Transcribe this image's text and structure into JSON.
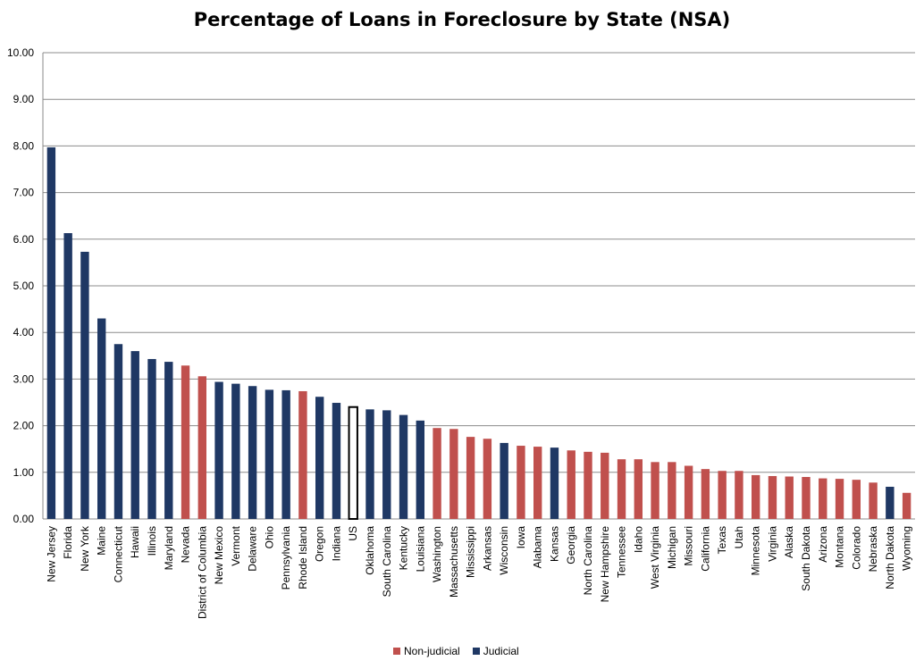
{
  "chart_data": {
    "type": "bar",
    "title": "Percentage of Loans in Foreclosure by State (NSA)",
    "xlabel": "",
    "ylabel": "",
    "ylim": [
      0,
      10
    ],
    "yticks": [
      "0.00",
      "1.00",
      "2.00",
      "3.00",
      "4.00",
      "5.00",
      "6.00",
      "7.00",
      "8.00",
      "9.00",
      "10.00"
    ],
    "grid": true,
    "legend_position": "bottom",
    "colors": {
      "Non-judicial": "#c0504d",
      "Judicial": "#1f3864",
      "US": "#ffffff",
      "US_outline": "#000000"
    },
    "legend": [
      "Non-judicial",
      "Judicial"
    ],
    "categories": [
      "New Jersey",
      "Florida",
      "New York",
      "Maine",
      "Connecticut",
      "Hawaii",
      "Illinois",
      "Maryland",
      "Nevada",
      "District of Columbia",
      "New Mexico",
      "Vermont",
      "Delaware",
      "Ohio",
      "Pennsylvania",
      "Rhode Island",
      "Oregon",
      "Indiana",
      "US",
      "Oklahoma",
      "South Carolina",
      "Kentucky",
      "Louisiana",
      "Washington",
      "Massachusetts",
      "Mississippi",
      "Arkansas",
      "Wisconsin",
      "Iowa",
      "Alabama",
      "Kansas",
      "Georgia",
      "North Carolina",
      "New Hampshire",
      "Tennessee",
      "Idaho",
      "West Virginia",
      "Michigan",
      "Missouri",
      "California",
      "Texas",
      "Utah",
      "Minnesota",
      "Virginia",
      "Alaska",
      "South Dakota",
      "Arizona",
      "Montana",
      "Colorado",
      "Nebraska",
      "North Dakota",
      "Wyoming"
    ],
    "values": [
      7.97,
      6.13,
      5.73,
      4.3,
      3.75,
      3.6,
      3.43,
      3.37,
      3.29,
      3.06,
      2.94,
      2.9,
      2.85,
      2.77,
      2.76,
      2.74,
      2.62,
      2.49,
      2.4,
      2.35,
      2.33,
      2.23,
      2.11,
      1.95,
      1.93,
      1.76,
      1.72,
      1.63,
      1.57,
      1.55,
      1.53,
      1.47,
      1.44,
      1.42,
      1.28,
      1.28,
      1.22,
      1.22,
      1.14,
      1.07,
      1.03,
      1.03,
      0.94,
      0.92,
      0.91,
      0.9,
      0.87,
      0.86,
      0.84,
      0.78,
      0.69,
      0.56
    ],
    "groups": [
      "Judicial",
      "Judicial",
      "Judicial",
      "Judicial",
      "Judicial",
      "Judicial",
      "Judicial",
      "Judicial",
      "Non-judicial",
      "Non-judicial",
      "Judicial",
      "Judicial",
      "Judicial",
      "Judicial",
      "Judicial",
      "Non-judicial",
      "Judicial",
      "Judicial",
      "US",
      "Judicial",
      "Judicial",
      "Judicial",
      "Judicial",
      "Non-judicial",
      "Non-judicial",
      "Non-judicial",
      "Non-judicial",
      "Judicial",
      "Non-judicial",
      "Non-judicial",
      "Judicial",
      "Non-judicial",
      "Non-judicial",
      "Non-judicial",
      "Non-judicial",
      "Non-judicial",
      "Non-judicial",
      "Non-judicial",
      "Non-judicial",
      "Non-judicial",
      "Non-judicial",
      "Non-judicial",
      "Non-judicial",
      "Non-judicial",
      "Non-judicial",
      "Non-judicial",
      "Non-judicial",
      "Non-judicial",
      "Non-judicial",
      "Non-judicial",
      "Judicial",
      "Non-judicial"
    ]
  }
}
